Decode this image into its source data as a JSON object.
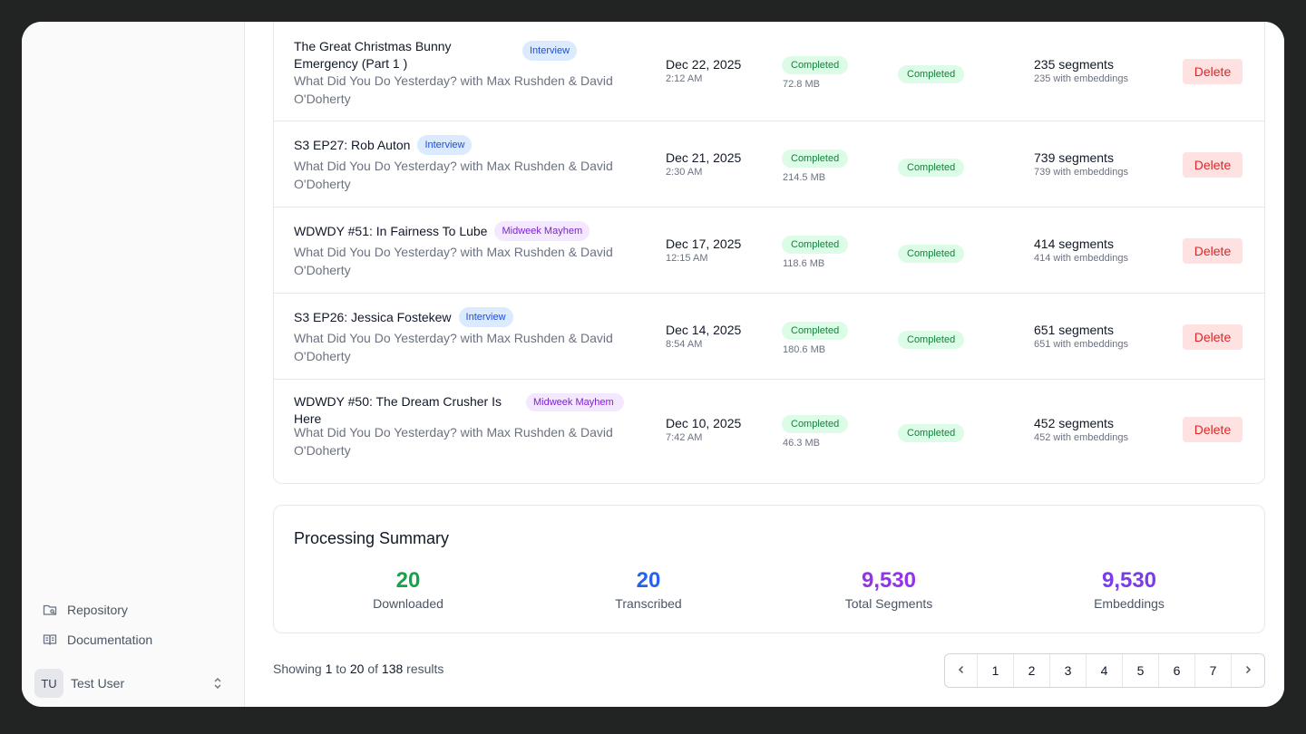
{
  "sidebar": {
    "links": [
      {
        "label": "Repository",
        "icon": "repository-icon"
      },
      {
        "label": "Documentation",
        "icon": "book-icon"
      }
    ],
    "user": {
      "initials": "TU",
      "name": "Test User"
    }
  },
  "episodes": [
    {
      "title": "The Great Christmas Bunny Emergency (Part 1 )",
      "tag": "Interview",
      "tag_type": "interview",
      "podcast": "What Did You Do Yesterday? with Max Rushden & David O'Doherty",
      "date": "Dec 22, 2025",
      "time": "2:12 AM",
      "download_status": "Completed",
      "size": "72.8 MB",
      "transcription_status": "Completed",
      "segments": "235 segments",
      "embeddings": "235 with embeddings",
      "delete_label": "Delete"
    },
    {
      "title": "S3 EP27: Rob Auton",
      "tag": "Interview",
      "tag_type": "interview",
      "podcast": "What Did You Do Yesterday? with Max Rushden & David O'Doherty",
      "date": "Dec 21, 2025",
      "time": "2:30 AM",
      "download_status": "Completed",
      "size": "214.5 MB",
      "transcription_status": "Completed",
      "segments": "739 segments",
      "embeddings": "739 with embeddings",
      "delete_label": "Delete"
    },
    {
      "title": "WDWDY #51: In Fairness To Lube",
      "tag": "Midweek Mayhem",
      "tag_type": "mayhem",
      "podcast": "What Did You Do Yesterday? with Max Rushden & David O'Doherty",
      "date": "Dec 17, 2025",
      "time": "12:15 AM",
      "download_status": "Completed",
      "size": "118.6 MB",
      "transcription_status": "Completed",
      "segments": "414 segments",
      "embeddings": "414 with embeddings",
      "delete_label": "Delete"
    },
    {
      "title": "S3 EP26: Jessica Fostekew",
      "tag": "Interview",
      "tag_type": "interview",
      "podcast": "What Did You Do Yesterday? with Max Rushden & David O'Doherty",
      "date": "Dec 14, 2025",
      "time": "8:54 AM",
      "download_status": "Completed",
      "size": "180.6 MB",
      "transcription_status": "Completed",
      "segments": "651 segments",
      "embeddings": "651 with embeddings",
      "delete_label": "Delete"
    },
    {
      "title": "WDWDY #50: The Dream Crusher Is Here",
      "tag": "Midweek Mayhem",
      "tag_type": "mayhem",
      "podcast": "What Did You Do Yesterday? with Max Rushden & David O'Doherty",
      "date": "Dec 10, 2025",
      "time": "7:42 AM",
      "download_status": "Completed",
      "size": "46.3 MB",
      "transcription_status": "Completed",
      "segments": "452 segments",
      "embeddings": "452 with embeddings",
      "delete_label": "Delete"
    }
  ],
  "summary": {
    "title": "Processing Summary",
    "stats": [
      {
        "value": "20",
        "label": "Downloaded",
        "color": "#16a34a"
      },
      {
        "value": "20",
        "label": "Transcribed",
        "color": "#2563eb"
      },
      {
        "value": "9,530",
        "label": "Total Segments",
        "color": "#9333ea"
      },
      {
        "value": "9,530",
        "label": "Embeddings",
        "color": "#7c3aed"
      }
    ]
  },
  "pagination": {
    "showing_prefix": "Showing",
    "from": "1",
    "to_word": "to",
    "to": "20",
    "of_word": "of",
    "total": "138",
    "suffix": "results",
    "prev_icon": "chevron-left-icon",
    "next_icon": "chevron-right-icon",
    "pages": [
      "1",
      "2",
      "3",
      "4",
      "5",
      "6",
      "7"
    ]
  }
}
